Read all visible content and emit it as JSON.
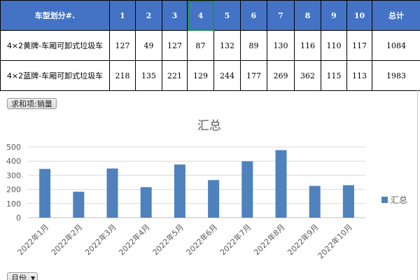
{
  "table": {
    "header": {
      "label": "车型划分#.",
      "months": [
        "1",
        "2",
        "3",
        "4",
        "5",
        "6",
        "7",
        "8",
        "9",
        "10"
      ],
      "total": "总计"
    },
    "rows": [
      {
        "label": "4×2黄牌-车厢可卸式垃圾车",
        "values": [
          "127",
          "49",
          "127",
          "87",
          "132",
          "89",
          "130",
          "116",
          "110",
          "117"
        ],
        "total": "1084"
      },
      {
        "label": "4×2蓝牌-车厢可卸式垃圾车",
        "values": [
          "218",
          "135",
          "221",
          "129",
          "244",
          "177",
          "269",
          "362",
          "115",
          "113"
        ],
        "total": "1983"
      }
    ]
  },
  "pivot": {
    "value_field": "求和项:销量",
    "axis_field": "月份",
    "legend_label": "汇总"
  },
  "colors": {
    "header_bg": "#4472c4",
    "bar": "#4f81bd",
    "selected_outline": "#1f8f4a",
    "gridline": "#d9d9d9"
  },
  "chart_data": {
    "type": "bar",
    "title": "汇总",
    "categories": [
      "2022年1月",
      "2022年2月",
      "2022年3月",
      "2022年4月",
      "2022年5月",
      "2022年6月",
      "2022年7月",
      "2022年8月",
      "2022年9月",
      "2022年10月"
    ],
    "series": [
      {
        "name": "汇总",
        "values": [
          345,
          184,
          348,
          216,
          376,
          266,
          399,
          478,
          225,
          230
        ]
      }
    ],
    "yticks": [
      "0",
      "100",
      "200",
      "300",
      "400",
      "500"
    ],
    "ylim": [
      0,
      500
    ],
    "grid": true,
    "legend": "right"
  }
}
